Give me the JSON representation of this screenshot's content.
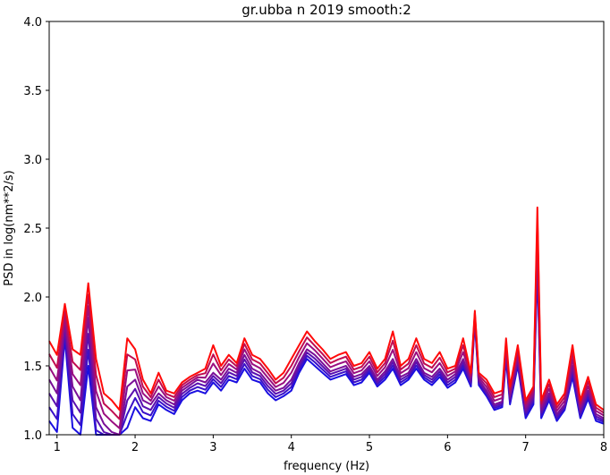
{
  "chart_data": {
    "type": "line",
    "title": "gr.ubba n 2019 smooth:2",
    "xlabel": "frequency (Hz)",
    "ylabel": "PSD in log(nm**2/s)",
    "xlim": [
      0.9,
      8.0
    ],
    "ylim": [
      1.0,
      4.0
    ],
    "xticks": [
      1,
      2,
      3,
      4,
      5,
      6,
      7,
      8
    ],
    "xtick_labels": [
      "1",
      "2",
      "3",
      "4",
      "5",
      "6",
      "7",
      "8"
    ],
    "yticks": [
      1.0,
      1.5,
      2.0,
      2.5,
      3.0,
      3.5,
      4.0
    ],
    "ytick_labels": [
      "1.0",
      "1.5",
      "2.0",
      "2.5",
      "3.0",
      "3.5",
      "4.0"
    ],
    "grid": false,
    "legend": "none",
    "series_colors": [
      "#1a0fe0",
      "#3a10c8",
      "#5a10b0",
      "#7a0f98",
      "#9a0e80",
      "#c00c50",
      "#ff0a0a"
    ],
    "x": [
      0.9,
      1.0,
      1.1,
      1.2,
      1.3,
      1.4,
      1.5,
      1.6,
      1.7,
      1.8,
      1.9,
      2.0,
      2.1,
      2.2,
      2.3,
      2.4,
      2.5,
      2.6,
      2.7,
      2.8,
      2.9,
      3.0,
      3.1,
      3.2,
      3.3,
      3.4,
      3.5,
      3.6,
      3.7,
      3.8,
      3.9,
      4.0,
      4.1,
      4.2,
      4.3,
      4.4,
      4.5,
      4.6,
      4.7,
      4.8,
      4.9,
      5.0,
      5.1,
      5.2,
      5.3,
      5.4,
      5.5,
      5.6,
      5.7,
      5.8,
      5.9,
      6.0,
      6.1,
      6.2,
      6.3,
      6.35,
      6.4,
      6.5,
      6.6,
      6.7,
      6.75,
      6.8,
      6.9,
      7.0,
      7.1,
      7.15,
      7.2,
      7.3,
      7.4,
      7.5,
      7.6,
      7.7,
      7.8,
      7.9,
      8.0
    ],
    "red": [
      1.68,
      1.58,
      1.95,
      1.62,
      1.58,
      2.1,
      1.55,
      1.3,
      1.25,
      1.18,
      1.7,
      1.62,
      1.4,
      1.3,
      1.45,
      1.32,
      1.3,
      1.38,
      1.42,
      1.45,
      1.48,
      1.65,
      1.5,
      1.58,
      1.52,
      1.7,
      1.58,
      1.55,
      1.48,
      1.4,
      1.45,
      1.55,
      1.65,
      1.75,
      1.68,
      1.62,
      1.55,
      1.58,
      1.6,
      1.5,
      1.52,
      1.6,
      1.48,
      1.55,
      1.75,
      1.5,
      1.55,
      1.7,
      1.55,
      1.52,
      1.6,
      1.48,
      1.5,
      1.7,
      1.45,
      1.9,
      1.45,
      1.4,
      1.3,
      1.32,
      1.7,
      1.35,
      1.65,
      1.25,
      1.35,
      2.65,
      1.25,
      1.4,
      1.22,
      1.3,
      1.65,
      1.25,
      1.42,
      1.22,
      1.18
    ],
    "purple": [
      1.4,
      1.3,
      1.8,
      1.35,
      1.25,
      1.85,
      1.2,
      1.08,
      1.02,
      0.98,
      1.35,
      1.4,
      1.25,
      1.22,
      1.3,
      1.25,
      1.22,
      1.32,
      1.36,
      1.4,
      1.38,
      1.45,
      1.4,
      1.48,
      1.45,
      1.58,
      1.48,
      1.45,
      1.38,
      1.32,
      1.34,
      1.4,
      1.52,
      1.62,
      1.58,
      1.52,
      1.46,
      1.48,
      1.5,
      1.42,
      1.44,
      1.5,
      1.4,
      1.46,
      1.55,
      1.42,
      1.45,
      1.55,
      1.45,
      1.42,
      1.48,
      1.4,
      1.44,
      1.55,
      1.4,
      1.85,
      1.4,
      1.32,
      1.22,
      1.24,
      1.6,
      1.28,
      1.55,
      1.18,
      1.28,
      2.4,
      1.18,
      1.3,
      1.15,
      1.22,
      1.5,
      1.18,
      1.32,
      1.15,
      1.12
    ],
    "blue": [
      1.1,
      1.02,
      1.7,
      1.05,
      0.98,
      1.5,
      0.95,
      0.9,
      0.9,
      0.9,
      1.05,
      1.2,
      1.12,
      1.1,
      1.22,
      1.18,
      1.15,
      1.25,
      1.3,
      1.32,
      1.3,
      1.38,
      1.32,
      1.4,
      1.38,
      1.48,
      1.4,
      1.38,
      1.3,
      1.25,
      1.28,
      1.32,
      1.45,
      1.55,
      1.5,
      1.45,
      1.4,
      1.42,
      1.44,
      1.36,
      1.38,
      1.45,
      1.35,
      1.4,
      1.48,
      1.36,
      1.4,
      1.48,
      1.4,
      1.36,
      1.42,
      1.34,
      1.38,
      1.48,
      1.35,
      1.82,
      1.36,
      1.28,
      1.18,
      1.2,
      1.55,
      1.22,
      1.5,
      1.12,
      1.22,
      2.2,
      1.12,
      1.25,
      1.1,
      1.18,
      1.42,
      1.12,
      1.26,
      1.1,
      1.08
    ]
  }
}
